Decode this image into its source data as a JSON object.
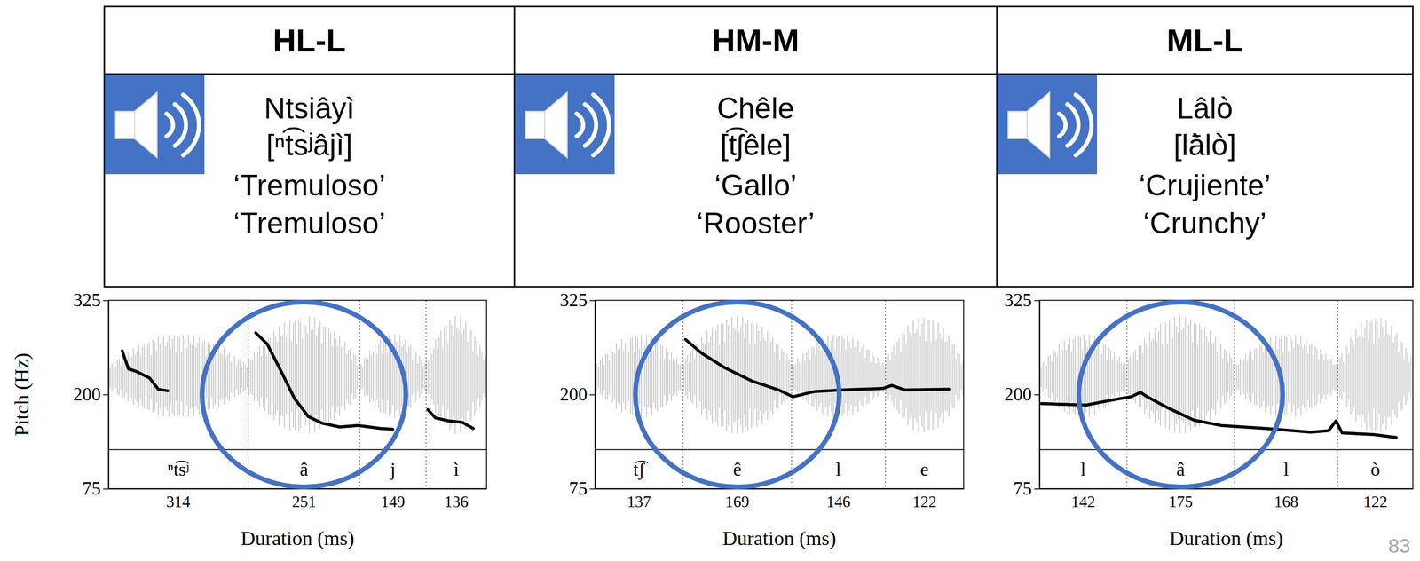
{
  "table": {
    "columns": [
      {
        "heading": "HL-L",
        "word": "Ntsiâyì",
        "ipa": "[ⁿt͡sʲâjì]",
        "gloss_es": "‘Tremuloso’",
        "gloss_en": "‘Tremuloso’"
      },
      {
        "heading": "HM-M",
        "word": "Chêle",
        "ipa": "[t͡ʃêle]",
        "gloss_es": "‘Gallo’",
        "gloss_en": "‘Rooster’"
      },
      {
        "heading": "ML-L",
        "word": "Lâlò",
        "ipa": "[lā̀lò]",
        "gloss_es": "‘Crujiente’",
        "gloss_en": "‘Crunchy’"
      }
    ]
  },
  "chart_data": [
    {
      "type": "line",
      "xlabel": "Duration (ms)",
      "ylabel": "Pitch (Hz)",
      "xlim": [
        0,
        850
      ],
      "ylim": [
        75,
        325
      ],
      "yticks": [
        75,
        200,
        325
      ],
      "tick_labels": "y",
      "color": "#000000",
      "x": [
        31,
        45,
        61,
        92,
        112,
        133,
        230,
        331,
        357,
        388,
        418,
        449,
        480,
        520,
        561,
        612,
        639,
        680,
        718,
        735,
        765,
        796,
        820
      ],
      "values": [
        258,
        234,
        231,
        222,
        207,
        205,
        null,
        282,
        267,
        231,
        195,
        171,
        162,
        157,
        159,
        155,
        154,
        null,
        180,
        169,
        165,
        163,
        155
      ],
      "segments": [
        "ⁿt͡sʲ",
        "â",
        "j",
        "ì"
      ],
      "durations": [
        314,
        251,
        149,
        136
      ]
    },
    {
      "type": "line",
      "xlabel": "Duration (ms)",
      "xlim": [
        0,
        574
      ],
      "ylim": [
        75,
        325
      ],
      "yticks": [
        75,
        200,
        325
      ],
      "tick_labels": "y",
      "color": "#000000",
      "x": [
        141,
        166,
        201,
        244,
        286,
        308,
        342,
        385,
        448,
        462,
        483,
        551
      ],
      "values": [
        273,
        255,
        236,
        218,
        206,
        197,
        204,
        206,
        208,
        212,
        206,
        207
      ],
      "segments": [
        "t͡ʃ",
        "ê",
        "l",
        "e"
      ],
      "durations": [
        137,
        169,
        146,
        122
      ]
    },
    {
      "type": "line",
      "xlabel": "Duration (ms)",
      "xlim": [
        0,
        607
      ],
      "ylim": [
        75,
        325
      ],
      "yticks": [
        75,
        200,
        325
      ],
      "tick_labels": "y",
      "color": "#000000",
      "x": [
        3,
        76,
        120,
        149,
        164,
        175,
        207,
        251,
        295,
        368,
        441,
        470,
        482,
        492,
        543,
        580
      ],
      "values": [
        188,
        186,
        193,
        197,
        203,
        197,
        183,
        166,
        159,
        155,
        150,
        152,
        165,
        149,
        147,
        143
      ],
      "segments": [
        "l",
        "â",
        "l",
        "ò"
      ],
      "durations": [
        142,
        175,
        168,
        122
      ]
    }
  ],
  "page_number": 83
}
